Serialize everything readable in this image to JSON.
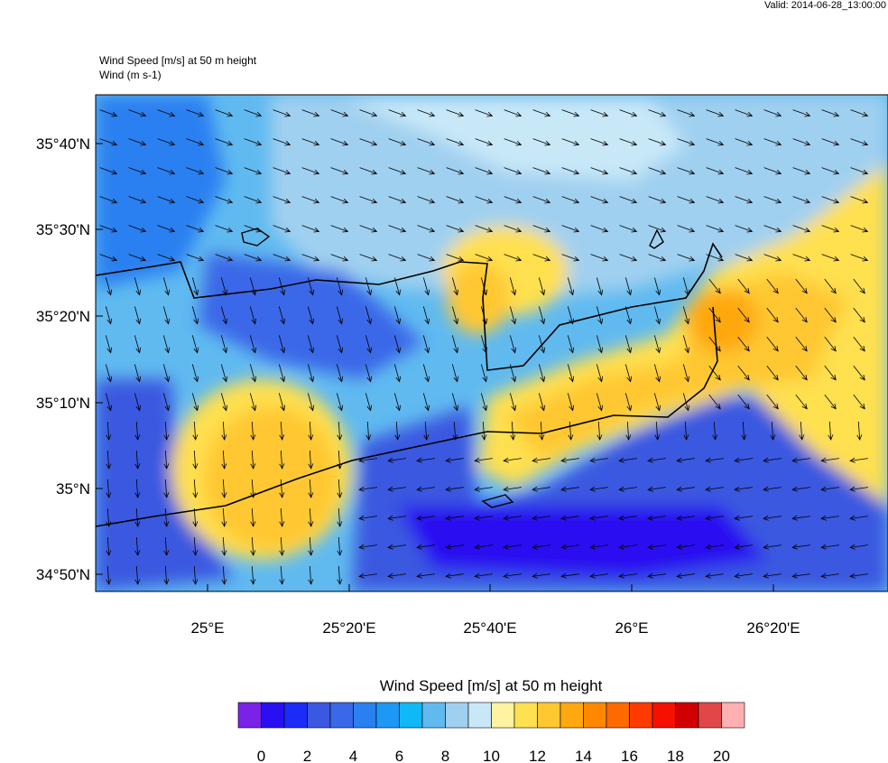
{
  "header": {
    "valid": "Valid: 2014-06-28_13:00:00"
  },
  "plot": {
    "title": "Wind Speed [m/s] at 50 m height",
    "subtitle": "Wind   (m s-1)",
    "lat_labels": [
      "35°40'N",
      "35°30'N",
      "35°20'N",
      "35°10'N",
      "35°N",
      "34°50'N"
    ],
    "lon_labels": [
      "25°E",
      "25°20'E",
      "25°40'E",
      "26°E",
      "26°20'E"
    ]
  },
  "colorbar": {
    "title": "Wind Speed [m/s] at 50 m height",
    "colors": [
      "#7a22e8",
      "#2a10f0",
      "#1a2cf5",
      "#3a58e0",
      "#3a68e8",
      "#2a80f0",
      "#1e98f5",
      "#10b8f5",
      "#60baf0",
      "#a0d0f0",
      "#c8e8f8",
      "#fff2a0",
      "#ffe050",
      "#ffc830",
      "#ffa810",
      "#ff8800",
      "#ff6a00",
      "#ff3a00",
      "#f51000",
      "#d00000",
      "#e04848",
      "#ffb0b0"
    ],
    "ticks": [
      0,
      2,
      4,
      6,
      8,
      10,
      12,
      14,
      16,
      18,
      20
    ]
  }
}
